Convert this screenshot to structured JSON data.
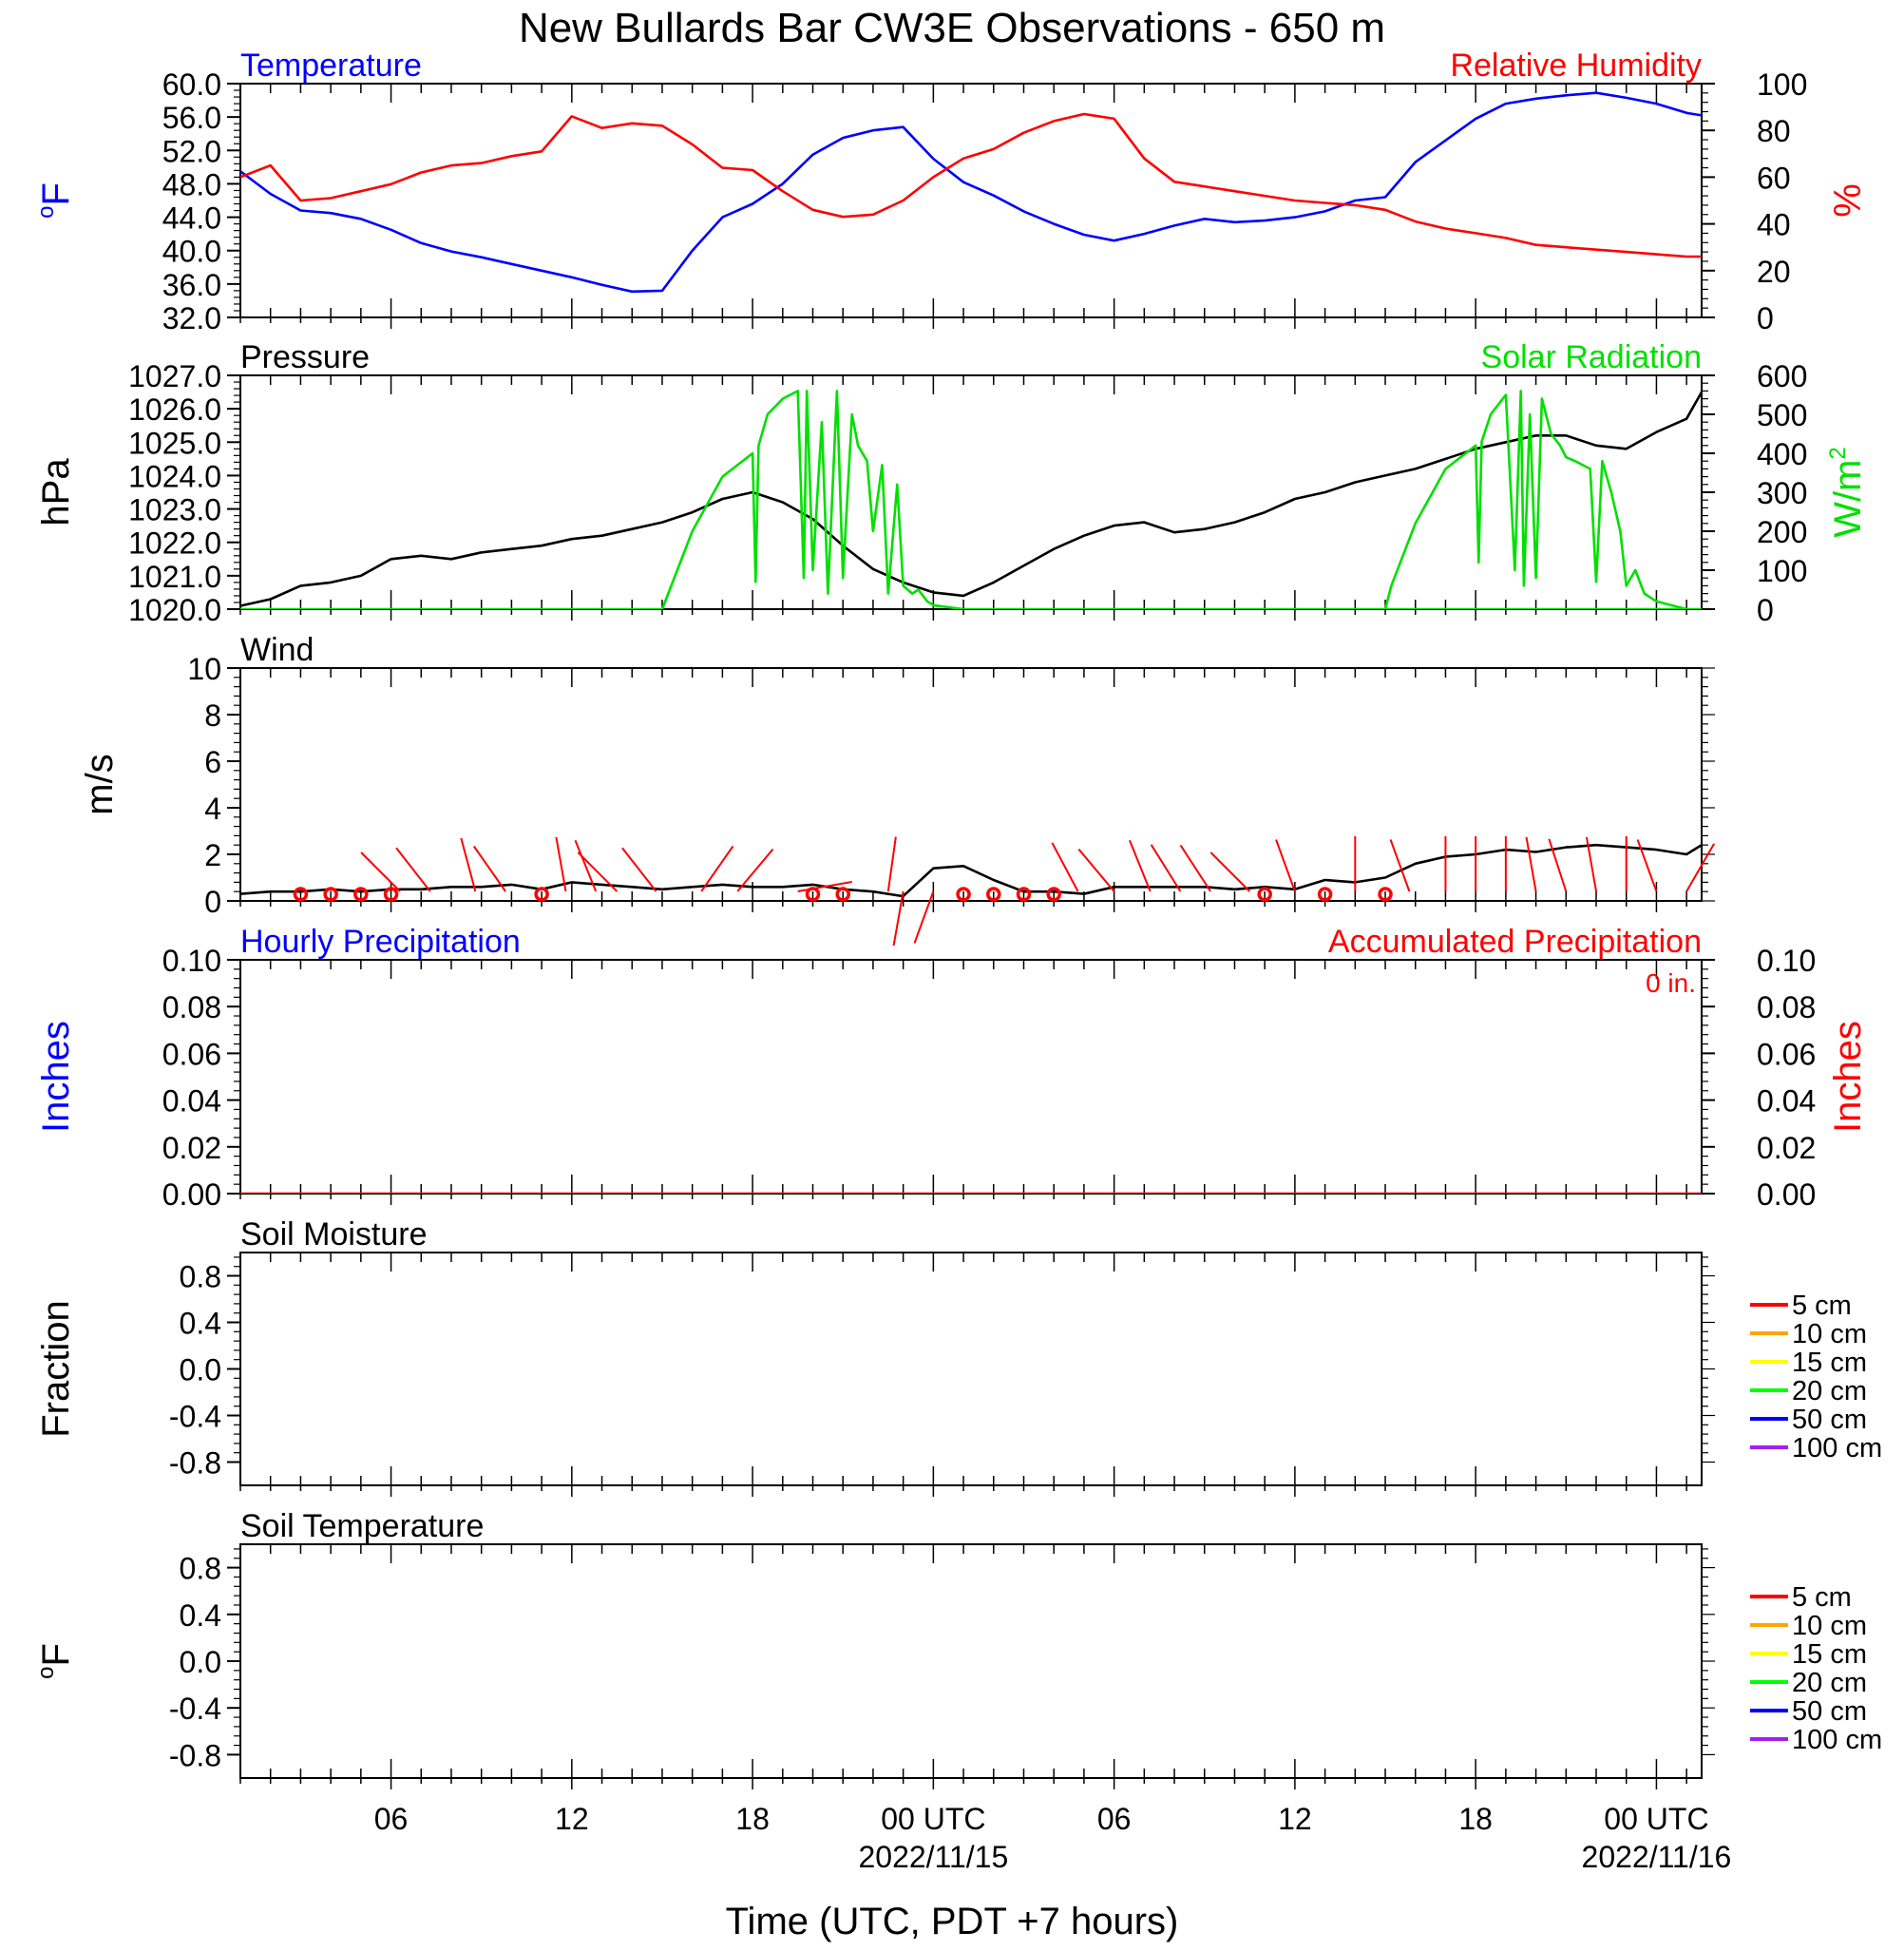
{
  "title": "New Bullards Bar CW3E Observations - 650 m",
  "x_axis": {
    "title": "Time (UTC, PDT +7 hours)",
    "ticks": [
      {
        "hour": 6,
        "label": "06",
        "date": ""
      },
      {
        "hour": 12,
        "label": "12",
        "date": ""
      },
      {
        "hour": 18,
        "label": "18",
        "date": ""
      },
      {
        "hour": 24,
        "label": "00 UTC",
        "date": "2022/11/15"
      },
      {
        "hour": 30,
        "label": "06",
        "date": ""
      },
      {
        "hour": 36,
        "label": "12",
        "date": ""
      },
      {
        "hour": 42,
        "label": "18",
        "date": ""
      },
      {
        "hour": 48,
        "label": "00 UTC",
        "date": "2022/11/16"
      }
    ],
    "range_hours": [
      1,
      49.5
    ]
  },
  "chart_data": [
    {
      "type": "line",
      "id": "temp-rh",
      "left_title": "Temperature",
      "right_title": "Relative Humidity",
      "left_ylabel": "oF",
      "right_ylabel": "%",
      "left_ylim": [
        32,
        60
      ],
      "right_ylim": [
        0,
        100
      ],
      "left_ticks": [
        "32.0",
        "36.0",
        "40.0",
        "44.0",
        "48.0",
        "52.0",
        "56.0",
        "60.0"
      ],
      "right_ticks": [
        "0",
        "20",
        "40",
        "60",
        "80",
        "100"
      ],
      "series": [
        {
          "name": "Temperature",
          "axis": "left",
          "color": "#0000ff",
          "x": [
            1,
            2,
            3,
            4,
            5,
            6,
            7,
            8,
            9,
            10,
            11,
            12,
            13,
            14,
            15,
            16,
            17,
            18,
            19,
            20,
            21,
            22,
            23,
            24,
            25,
            26,
            27,
            28,
            29,
            30,
            31,
            32,
            33,
            34,
            35,
            36,
            37,
            38,
            39,
            40,
            41,
            42,
            43,
            44,
            45,
            46,
            47,
            48,
            49,
            49.5
          ],
          "y": [
            49.5,
            46.8,
            44.8,
            44.5,
            43.8,
            42.5,
            40.9,
            39.9,
            39.2,
            38.4,
            37.6,
            36.8,
            35.9,
            35.1,
            35.2,
            40.0,
            44.0,
            45.6,
            48.0,
            51.5,
            53.5,
            54.4,
            54.8,
            51.0,
            48.2,
            46.6,
            44.7,
            43.2,
            41.9,
            41.2,
            42.0,
            43.0,
            43.8,
            43.4,
            43.6,
            44.0,
            44.7,
            46.0,
            46.4,
            50.6,
            53.2,
            55.8,
            57.6,
            58.2,
            58.6,
            58.9,
            58.3,
            57.6,
            56.5,
            56.2
          ]
        },
        {
          "name": "Relative Humidity",
          "axis": "right",
          "color": "#ff0000",
          "x": [
            1,
            2,
            3,
            4,
            5,
            6,
            7,
            8,
            9,
            10,
            11,
            12,
            13,
            14,
            15,
            16,
            17,
            18,
            19,
            20,
            21,
            22,
            23,
            24,
            25,
            26,
            27,
            28,
            29,
            30,
            31,
            32,
            33,
            34,
            35,
            36,
            37,
            38,
            39,
            40,
            41,
            42,
            43,
            44,
            45,
            46,
            47,
            48,
            49,
            49.5
          ],
          "y": [
            60,
            65,
            50,
            51,
            54,
            57,
            62,
            65,
            66,
            69,
            71,
            86,
            81,
            83,
            82,
            74,
            64,
            63,
            54,
            46,
            43,
            44,
            50,
            60,
            68,
            72,
            79,
            84,
            87,
            85,
            68,
            58,
            56,
            54,
            52,
            50,
            49,
            48,
            46,
            41,
            38,
            36,
            34,
            31,
            30,
            29,
            28,
            27,
            26,
            26
          ]
        }
      ]
    },
    {
      "type": "line",
      "id": "pressure-solar",
      "left_title": "Pressure",
      "right_title": "Solar Radiation",
      "left_ylabel": "hPa",
      "right_ylabel": "W/m2",
      "left_ylim": [
        1020,
        1027
      ],
      "right_ylim": [
        0,
        600
      ],
      "left_ticks": [
        "1020.0",
        "1021.0",
        "1022.0",
        "1023.0",
        "1024.0",
        "1025.0",
        "1026.0",
        "1027.0"
      ],
      "right_ticks": [
        "0",
        "100",
        "200",
        "300",
        "400",
        "500",
        "600"
      ],
      "series": [
        {
          "name": "Pressure",
          "axis": "left",
          "color": "#000000",
          "x": [
            1,
            2,
            3,
            4,
            5,
            6,
            7,
            8,
            9,
            10,
            11,
            12,
            13,
            14,
            15,
            16,
            17,
            18,
            19,
            20,
            21,
            22,
            23,
            24,
            25,
            26,
            27,
            28,
            29,
            30,
            31,
            32,
            33,
            34,
            35,
            36,
            37,
            38,
            39,
            40,
            41,
            42,
            43,
            44,
            45,
            46,
            47,
            48,
            49,
            49.5
          ],
          "y": [
            1020.1,
            1020.3,
            1020.7,
            1020.8,
            1021.0,
            1021.5,
            1021.6,
            1021.5,
            1021.7,
            1021.8,
            1021.9,
            1022.1,
            1022.2,
            1022.4,
            1022.6,
            1022.9,
            1023.3,
            1023.5,
            1023.2,
            1022.7,
            1021.9,
            1021.2,
            1020.8,
            1020.5,
            1020.4,
            1020.8,
            1021.3,
            1021.8,
            1022.2,
            1022.5,
            1022.6,
            1022.3,
            1022.4,
            1022.6,
            1022.9,
            1023.3,
            1023.5,
            1023.8,
            1024.0,
            1024.2,
            1024.5,
            1024.8,
            1025.0,
            1025.2,
            1025.2,
            1024.9,
            1024.8,
            1025.3,
            1025.7,
            1026.5
          ]
        },
        {
          "name": "Solar Radiation",
          "axis": "right",
          "color": "#00e000",
          "x": [
            1,
            15.0,
            15.3,
            16,
            17,
            18,
            18.1,
            18.2,
            18.5,
            19,
            19.5,
            19.7,
            19.8,
            20.0,
            20.3,
            20.5,
            20.8,
            21.0,
            21.3,
            21.5,
            21.8,
            22.0,
            22.3,
            22.5,
            22.8,
            23.0,
            23.3,
            23.5,
            23.8,
            24.0,
            25,
            49.5
          ],
          "y": [
            0,
            0,
            60,
            200,
            340,
            400,
            70,
            420,
            500,
            540,
            560,
            80,
            560,
            100,
            480,
            40,
            560,
            80,
            500,
            420,
            380,
            200,
            370,
            40,
            320,
            60,
            40,
            50,
            20,
            10,
            0,
            0
          ]
        },
        {
          "name": "Solar Radiation (day 2)",
          "axis": "right",
          "color": "#00e000",
          "x": [
            39.0,
            39.2,
            40,
            41,
            42,
            42.1,
            42.2,
            42.5,
            43,
            43.3,
            43.5,
            43.6,
            43.8,
            44.0,
            44.2,
            44.5,
            44.8,
            45.0,
            45.3,
            45.8,
            46.0,
            46.2,
            46.5,
            46.8,
            47.0,
            47.3,
            47.6,
            48.0,
            49.0
          ],
          "y": [
            0,
            60,
            220,
            360,
            420,
            120,
            430,
            500,
            550,
            100,
            560,
            60,
            500,
            80,
            540,
            450,
            420,
            390,
            380,
            360,
            70,
            380,
            300,
            200,
            60,
            100,
            40,
            20,
            0
          ]
        }
      ]
    },
    {
      "type": "line",
      "id": "wind",
      "left_title": "Wind",
      "left_ylabel": "m/s",
      "left_ylim": [
        0,
        10
      ],
      "left_ticks": [
        "0",
        "2",
        "4",
        "6",
        "8",
        "10"
      ],
      "series": [
        {
          "name": "Wind",
          "axis": "left",
          "color": "#000000",
          "x": [
            1,
            2,
            3,
            4,
            5,
            6,
            7,
            8,
            9,
            10,
            11,
            12,
            13,
            14,
            15,
            16,
            17,
            18,
            19,
            20,
            21,
            22,
            23,
            24,
            25,
            26,
            27,
            28,
            29,
            30,
            31,
            32,
            33,
            34,
            35,
            36,
            37,
            38,
            39,
            40,
            41,
            42,
            43,
            44,
            45,
            46,
            47,
            48,
            49,
            49.5
          ],
          "y": [
            0.3,
            0.4,
            0.4,
            0.5,
            0.4,
            0.5,
            0.5,
            0.6,
            0.6,
            0.7,
            0.5,
            0.8,
            0.7,
            0.6,
            0.5,
            0.6,
            0.7,
            0.6,
            0.6,
            0.7,
            0.5,
            0.4,
            0.2,
            1.4,
            1.5,
            0.9,
            0.4,
            0.4,
            0.3,
            0.6,
            0.6,
            0.6,
            0.6,
            0.5,
            0.6,
            0.5,
            0.9,
            0.8,
            1.0,
            1.6,
            1.9,
            2.0,
            2.2,
            2.1,
            2.3,
            2.4,
            2.3,
            2.2,
            2.0,
            2.4
          ]
        }
      ],
      "barbs": [
        {
          "hour": 3,
          "angle": null
        },
        {
          "hour": 4,
          "angle": null
        },
        {
          "hour": 5,
          "angle": null
        },
        {
          "hour": 6,
          "angle": null
        },
        {
          "hour": 6.3,
          "angle": -45
        },
        {
          "hour": 7.3,
          "angle": -38
        },
        {
          "hour": 8.8,
          "angle": -15
        },
        {
          "hour": 9.8,
          "angle": -35
        },
        {
          "hour": 11,
          "angle": null
        },
        {
          "hour": 11.8,
          "angle": -10
        },
        {
          "hour": 12.8,
          "angle": -22
        },
        {
          "hour": 13.5,
          "angle": -45
        },
        {
          "hour": 14.8,
          "angle": -38
        },
        {
          "hour": 16.3,
          "angle": 35
        },
        {
          "hour": 17.5,
          "angle": 40
        },
        {
          "hour": 20,
          "angle": null
        },
        {
          "hour": 19.5,
          "angle": 80
        },
        {
          "hour": 21,
          "angle": null
        },
        {
          "hour": 22.5,
          "angle": 8
        },
        {
          "hour": 23,
          "angle": 190
        },
        {
          "hour": 24,
          "angle": 200
        },
        {
          "hour": 25,
          "angle": null
        },
        {
          "hour": 26,
          "angle": null
        },
        {
          "hour": 27,
          "angle": null
        },
        {
          "hour": 28,
          "angle": null
        },
        {
          "hour": 28.8,
          "angle": -28
        },
        {
          "hour": 30,
          "angle": -40
        },
        {
          "hour": 31.2,
          "angle": -22
        },
        {
          "hour": 32.2,
          "angle": -32
        },
        {
          "hour": 33.2,
          "angle": -33
        },
        {
          "hour": 34.5,
          "angle": -45
        },
        {
          "hour": 35,
          "angle": null
        },
        {
          "hour": 36,
          "angle": -20
        },
        {
          "hour": 37,
          "angle": null
        },
        {
          "hour": 38,
          "angle": 0
        },
        {
          "hour": 39,
          "angle": null
        },
        {
          "hour": 39.8,
          "angle": -20
        },
        {
          "hour": 41,
          "angle": 0
        },
        {
          "hour": 42,
          "angle": 0
        },
        {
          "hour": 43,
          "angle": 0
        },
        {
          "hour": 44,
          "angle": -10
        },
        {
          "hour": 45,
          "angle": -18
        },
        {
          "hour": 46,
          "angle": -10
        },
        {
          "hour": 47,
          "angle": 0
        },
        {
          "hour": 48,
          "angle": -20
        },
        {
          "hour": 49,
          "angle": 30
        }
      ],
      "calm_circles": [
        3,
        4,
        5,
        6,
        11,
        20,
        21,
        25,
        26,
        27,
        28,
        35,
        37,
        39
      ]
    },
    {
      "type": "line",
      "id": "precip",
      "left_title": "Hourly Precipitation",
      "right_title": "Accumulated Precipitation",
      "annotation": "0 in.",
      "left_ylabel": "Inches",
      "right_ylabel": "Inches",
      "left_ylim": [
        0,
        0.1
      ],
      "right_ylim": [
        0,
        0.1
      ],
      "left_ticks": [
        "0.00",
        "0.02",
        "0.04",
        "0.06",
        "0.08",
        "0.10"
      ],
      "right_ticks": [
        "0.00",
        "0.02",
        "0.04",
        "0.06",
        "0.08",
        "0.10"
      ],
      "series": [
        {
          "name": "Accumulated Precipitation",
          "axis": "right",
          "color": "#ff0000",
          "x": [
            1,
            49.5
          ],
          "y": [
            0,
            0
          ]
        }
      ]
    },
    {
      "type": "line",
      "id": "soil-moisture",
      "left_title": "Soil Moisture",
      "left_ylabel": "Fraction",
      "left_ylim": [
        -1,
        1
      ],
      "left_ticks": [
        "-0.8",
        "-0.4",
        "0.0",
        "0.4",
        "0.8"
      ],
      "legend": [
        {
          "name": "5 cm",
          "color": "#ff0000"
        },
        {
          "name": "10 cm",
          "color": "#ffa500"
        },
        {
          "name": "15 cm",
          "color": "#ffff00"
        },
        {
          "name": "20 cm",
          "color": "#00ff00"
        },
        {
          "name": "50 cm",
          "color": "#0000ff"
        },
        {
          "name": "100 cm",
          "color": "#a020f0"
        }
      ],
      "series": []
    },
    {
      "type": "line",
      "id": "soil-temperature",
      "left_title": "Soil Temperature",
      "left_ylabel": "oF",
      "left_ylim": [
        -1,
        1
      ],
      "left_ticks": [
        "-0.8",
        "-0.4",
        "0.0",
        "0.4",
        "0.8"
      ],
      "legend": [
        {
          "name": "5 cm",
          "color": "#ff0000"
        },
        {
          "name": "10 cm",
          "color": "#ffa500"
        },
        {
          "name": "15 cm",
          "color": "#ffff00"
        },
        {
          "name": "20 cm",
          "color": "#00ff00"
        },
        {
          "name": "50 cm",
          "color": "#0000ff"
        },
        {
          "name": "100 cm",
          "color": "#a020f0"
        }
      ],
      "series": []
    }
  ]
}
